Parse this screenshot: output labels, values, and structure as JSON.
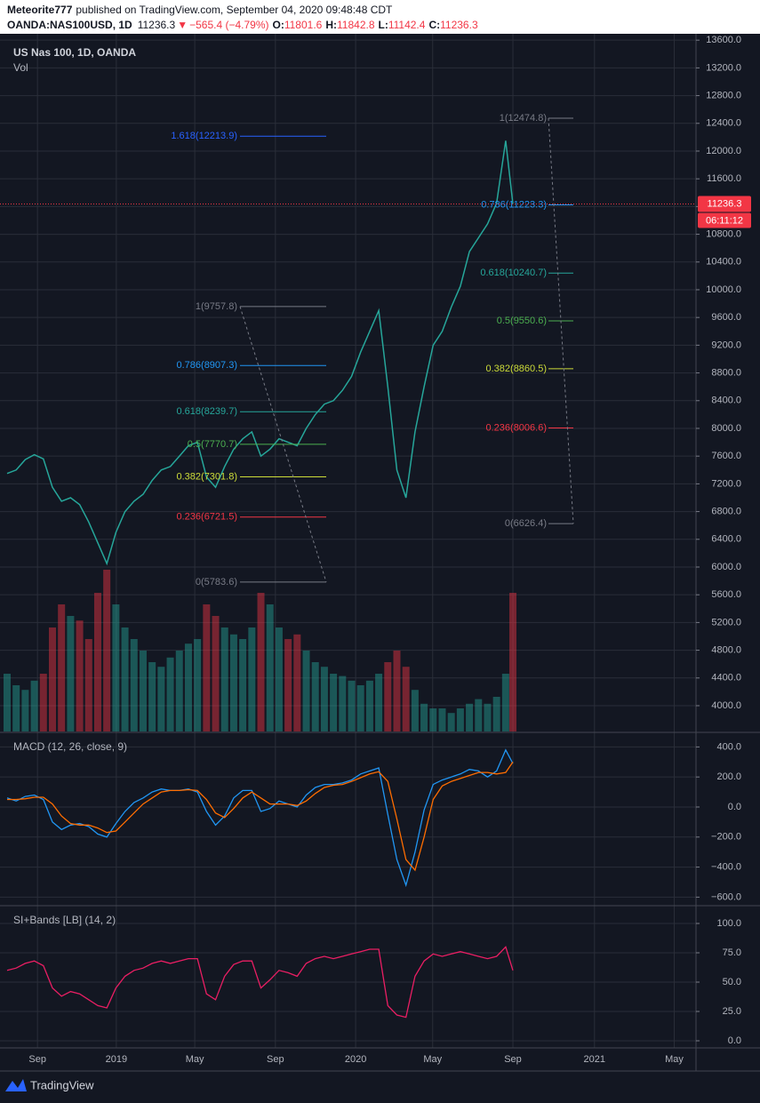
{
  "header": {
    "author": "Meteorite777",
    "published": "published on TradingView.com, September 04, 2020 09:48:48 CDT",
    "symbol": "OANDA:NAS100USD, 1D",
    "last": 11236.3,
    "arrow": "▼",
    "change": "−565.4 (−4.79%)",
    "open_label": "O:",
    "open": 11801.6,
    "high_label": "H:",
    "high": 11842.8,
    "low_label": "L:",
    "low": 11142.4,
    "close_label": "C:",
    "close": 11236.3
  },
  "chart_data": [
    {
      "type": "line",
      "title": "US Nas 100, 1D, OANDA",
      "color": "#26a69a",
      "x": [
        0,
        2,
        4,
        6,
        8,
        10,
        12,
        14,
        16,
        18,
        20,
        22,
        24,
        26,
        28,
        30,
        32,
        34,
        36,
        38,
        40,
        42,
        44,
        46,
        48,
        50,
        52,
        54,
        56,
        58,
        60,
        62,
        64,
        66,
        68,
        70,
        72,
        74,
        76,
        78,
        80,
        82,
        84,
        86,
        88,
        90,
        92,
        94,
        96,
        98,
        100,
        102,
        104,
        106,
        108,
        110,
        111.6
      ],
      "values": [
        7350,
        7400,
        7550,
        7620,
        7560,
        7150,
        6950,
        7000,
        6900,
        6650,
        6350,
        6050,
        6500,
        6800,
        6950,
        7050,
        7250,
        7400,
        7450,
        7600,
        7750,
        7800,
        7300,
        7150,
        7450,
        7700,
        7850,
        7950,
        7600,
        7700,
        7850,
        7800,
        7750,
        8000,
        8200,
        8350,
        8400,
        8550,
        8750,
        9100,
        9400,
        9700,
        8600,
        7400,
        7000,
        7950,
        8600,
        9200,
        9400,
        9750,
        10050,
        10550,
        10750,
        10950,
        11250,
        12150,
        11236.3
      ],
      "countdown": "06:11:12",
      "xlim": [
        0,
        152
      ],
      "xticks": [
        {
          "value": 6.7,
          "label": "Sep"
        },
        {
          "value": 24.1,
          "label": "2019"
        },
        {
          "value": 41.4,
          "label": "May"
        },
        {
          "value": 59.2,
          "label": "Sep"
        },
        {
          "value": 76.9,
          "label": "2020"
        },
        {
          "value": 93.9,
          "label": "May"
        },
        {
          "value": 111.6,
          "label": "Sep"
        },
        {
          "value": 129.6,
          "label": "2021"
        },
        {
          "value": 147.2,
          "label": "May"
        }
      ],
      "ylim": [
        3628,
        13692
      ],
      "yticks": [
        {
          "value": 4000,
          "label": "4000.0"
        },
        {
          "value": 4400,
          "label": "4400.0"
        },
        {
          "value": 4800,
          "label": "4800.0"
        },
        {
          "value": 5200,
          "label": "5200.0"
        },
        {
          "value": 5600,
          "label": "5600.0"
        },
        {
          "value": 6000,
          "label": "6000.0"
        },
        {
          "value": 6400,
          "label": "6400.0"
        },
        {
          "value": 6800,
          "label": "6800.0"
        },
        {
          "value": 7200,
          "label": "7200.0"
        },
        {
          "value": 7600,
          "label": "7600.0"
        },
        {
          "value": 8000,
          "label": "8000.0"
        },
        {
          "value": 8400,
          "label": "8400.0"
        },
        {
          "value": 8800,
          "label": "8800.0"
        },
        {
          "value": 9200,
          "label": "9200.0"
        },
        {
          "value": 9600,
          "label": "9600.0"
        },
        {
          "value": 10000,
          "label": "10000.0"
        },
        {
          "value": 10400,
          "label": "10400.0"
        },
        {
          "value": 10800,
          "label": "10800.0"
        },
        {
          "value": 11200,
          "label": "11200.0"
        },
        {
          "value": 11600,
          "label": "11600.0"
        },
        {
          "value": 12000,
          "label": "12000.0"
        },
        {
          "value": 12400,
          "label": "12400.0"
        },
        {
          "value": 12800,
          "label": "12800.0"
        },
        {
          "value": 13200,
          "label": "13200.0"
        },
        {
          "value": 13600,
          "label": "13600.0"
        }
      ],
      "grid": true,
      "fib_sets": [
        {
          "levels": [
            {
              "label": "1.618(12213.9)",
              "value": 12213.9,
              "color": "#2962ff"
            },
            {
              "label": "1(9757.8)",
              "value": 9757.8,
              "color": "#787b86"
            },
            {
              "label": "0.786(8907.3)",
              "value": 8907.3,
              "color": "#2196f3"
            },
            {
              "label": "0.618(8239.7)",
              "value": 8239.7,
              "color": "#26a69a"
            },
            {
              "label": "0.5(7770.7)",
              "value": 7770.7,
              "color": "#4caf50"
            },
            {
              "label": "0.382(7301.8)",
              "value": 7301.8,
              "color": "#cddc39"
            },
            {
              "label": "0.236(6721.5)",
              "value": 6721.5,
              "color": "#f23645"
            },
            {
              "label": "0(5783.6)",
              "value": 5783.6,
              "color": "#787b86"
            }
          ]
        },
        {
          "levels": [
            {
              "label": "1(12474.8)",
              "value": 12474.8,
              "color": "#787b86"
            },
            {
              "label": "0.786(11223.3)",
              "value": 11223.3,
              "color": "#2196f3"
            },
            {
              "label": "0.618(10240.7)",
              "value": 10240.7,
              "color": "#26a69a"
            },
            {
              "label": "0.5(9550.6)",
              "value": 9550.6,
              "color": "#4caf50"
            },
            {
              "label": "0.382(8860.5)",
              "value": 8860.5,
              "color": "#cddc39"
            },
            {
              "label": "0.236(8006.6)",
              "value": 8006.6,
              "color": "#f23645"
            },
            {
              "label": "0(6626.4)",
              "value": 6626.4,
              "color": "#787b86"
            }
          ]
        }
      ]
    },
    {
      "type": "bar",
      "title": "Vol",
      "values": [
        25,
        20,
        18,
        22,
        25,
        45,
        55,
        50,
        48,
        40,
        60,
        70,
        55,
        45,
        40,
        35,
        30,
        28,
        32,
        35,
        38,
        40,
        55,
        50,
        45,
        42,
        40,
        45,
        60,
        55,
        45,
        40,
        42,
        35,
        30,
        28,
        25,
        24,
        22,
        20,
        22,
        25,
        30,
        35,
        28,
        18,
        12,
        10,
        10,
        8,
        10,
        12,
        14,
        12,
        15,
        25,
        60
      ]
    },
    {
      "type": "line",
      "title": "MACD (12, 26, close, 9)",
      "series": [
        {
          "color": "#2196f3",
          "values": [
            60,
            40,
            70,
            80,
            50,
            -100,
            -150,
            -120,
            -110,
            -130,
            -180,
            -200,
            -110,
            -30,
            30,
            60,
            100,
            120,
            110,
            110,
            120,
            100,
            -30,
            -120,
            -60,
            60,
            110,
            110,
            -30,
            -10,
            40,
            20,
            0,
            80,
            130,
            150,
            150,
            160,
            180,
            220,
            240,
            260,
            -50,
            -350,
            -520,
            -300,
            -20,
            150,
            180,
            200,
            220,
            250,
            240,
            200,
            240,
            380,
            290
          ]
        },
        {
          "color": "#ff6d00",
          "values": [
            50,
            50,
            55,
            65,
            65,
            20,
            -60,
            -110,
            -120,
            -120,
            -140,
            -170,
            -160,
            -100,
            -40,
            20,
            60,
            100,
            110,
            110,
            115,
            110,
            50,
            -40,
            -70,
            -10,
            60,
            100,
            60,
            20,
            20,
            20,
            10,
            40,
            90,
            130,
            145,
            150,
            170,
            195,
            220,
            235,
            170,
            -80,
            -350,
            -420,
            -200,
            50,
            140,
            170,
            190,
            210,
            230,
            230,
            220,
            230,
            300
          ]
        }
      ],
      "ylim": [
        -651,
        491
      ],
      "yticks": [
        {
          "value": -600,
          "label": "−600.0"
        },
        {
          "value": -400,
          "label": "−400.0"
        },
        {
          "value": -200,
          "label": "−200.0"
        },
        {
          "value": 0,
          "label": "0.0"
        },
        {
          "value": 200,
          "label": "200.0"
        },
        {
          "value": 400,
          "label": "400.0"
        }
      ]
    },
    {
      "type": "line",
      "title": "SI+Bands [LB] (14, 2)",
      "series": [
        {
          "color": "#e91e63",
          "values": [
            60,
            62,
            66,
            68,
            64,
            45,
            38,
            42,
            40,
            35,
            30,
            28,
            45,
            55,
            60,
            62,
            66,
            68,
            66,
            68,
            70,
            70,
            40,
            35,
            55,
            65,
            68,
            68,
            45,
            52,
            60,
            58,
            55,
            66,
            70,
            72,
            70,
            72,
            74,
            76,
            78,
            78,
            30,
            22,
            20,
            55,
            68,
            74,
            72,
            74,
            76,
            74,
            72,
            70,
            72,
            80,
            60
          ]
        }
      ],
      "ylim": [
        -5.3,
        114.4
      ],
      "yticks": [
        {
          "value": 0,
          "label": "0.0"
        },
        {
          "value": 25,
          "label": "25.0"
        },
        {
          "value": 50,
          "label": "50.0"
        },
        {
          "value": 75,
          "label": "75.0"
        },
        {
          "value": 100,
          "label": "100.0"
        }
      ]
    }
  ],
  "footer": "TradingView"
}
